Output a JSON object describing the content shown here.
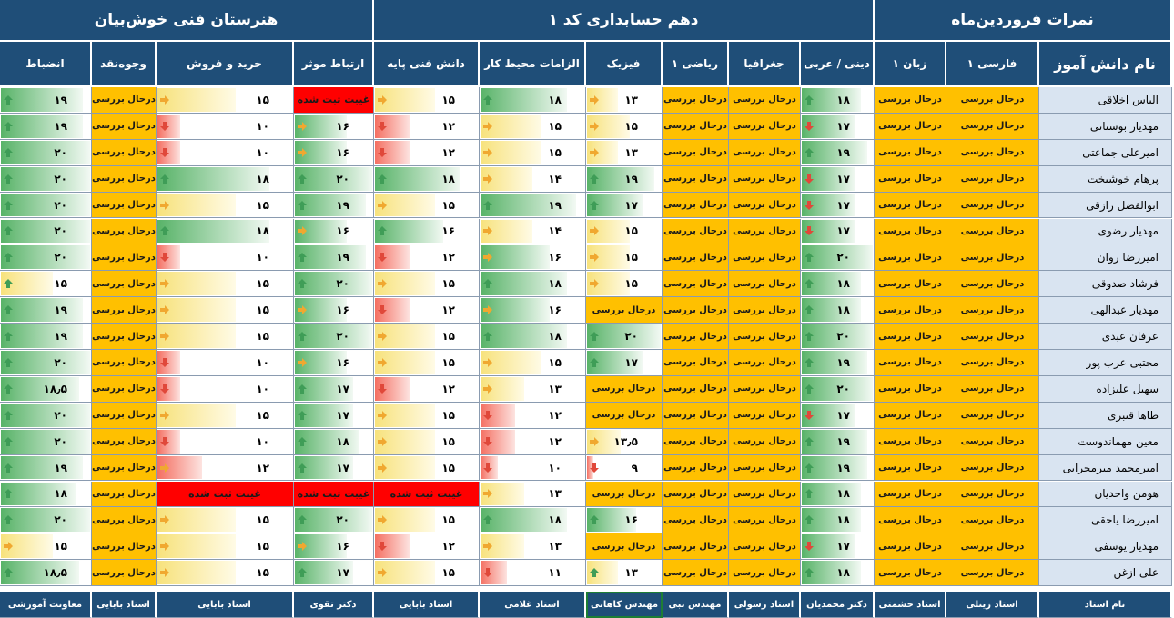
{
  "banners": {
    "school": "هنرستان فنی خوش‌بیان",
    "grade": "دهم حسابداری کد ۱",
    "title": "نمرات فروردین‌ماه"
  },
  "legend": {
    "status_text": "درحال بررسی",
    "absent_text": "غیبت ثبت شده",
    "icons": {
      "up": "arrow-up-icon",
      "right": "arrow-right-icon",
      "down": "arrow-down-icon"
    },
    "colors": {
      "header": "#1f4e78",
      "pending": "#ffc000",
      "absent": "#ff0000",
      "good": "#58b368",
      "medium": "#f7e27c",
      "poor": "#f46f61",
      "name_bg": "#d9e4f1"
    }
  },
  "columns": [
    {
      "key": "name",
      "label": "نام دانش آموز"
    },
    {
      "key": "farsi",
      "label": "فارسی ۱"
    },
    {
      "key": "zaban",
      "label": "زبان ۱"
    },
    {
      "key": "dini",
      "label": "دینی / عربی"
    },
    {
      "key": "joghrafia",
      "label": "جغرافیا"
    },
    {
      "key": "riazi",
      "label": "ریاضی ۱"
    },
    {
      "key": "fizik",
      "label": "فیزیک"
    },
    {
      "key": "elzamat",
      "label": "الزامات محیط کار"
    },
    {
      "key": "danesh",
      "label": "دانش فنی پایه"
    },
    {
      "key": "ertebat",
      "label": "ارتباط موثر"
    },
    {
      "key": "kharid",
      "label": "خرید  و فروش"
    },
    {
      "key": "vojooh",
      "label": "وجوه‌نقد"
    },
    {
      "key": "enzebat",
      "label": "انضباط"
    }
  ],
  "teachers": {
    "header": "نام استاد",
    "list": [
      "استاد زینلی",
      "استاد حشمتی",
      "دکتر محمدیان",
      "استاد رسولی",
      "مهندس نبی",
      "مهندس کاهانی",
      "استاد غلامی",
      "استاد بابایی",
      "دکتر تقوی",
      "استاد بابایی",
      "استاد بابایی",
      "معاونت آموزشی"
    ]
  },
  "students": [
    {
      "name": "الیاس اخلاقی",
      "scores": [
        "P",
        "P",
        {
          "v": "۱۸",
          "n": 18,
          "i": "up"
        },
        "P",
        "P",
        {
          "v": "۱۳",
          "n": 13,
          "i": "right"
        },
        {
          "v": "۱۸",
          "n": 18,
          "i": "up"
        },
        {
          "v": "۱۵",
          "n": 15,
          "i": "right"
        },
        "A",
        {
          "v": "۱۵",
          "n": 15,
          "i": "right"
        },
        "P",
        {
          "v": "۱۹",
          "n": 19,
          "i": "up"
        }
      ]
    },
    {
      "name": "مهدیار بوستانی",
      "scores": [
        "P",
        "P",
        {
          "v": "۱۷",
          "n": 17,
          "i": "down"
        },
        "P",
        "P",
        {
          "v": "۱۵",
          "n": 15,
          "i": "right"
        },
        {
          "v": "۱۵",
          "n": 15,
          "i": "right"
        },
        {
          "v": "۱۲",
          "n": 12,
          "i": "down"
        },
        {
          "v": "۱۶",
          "n": 16,
          "i": "right"
        },
        {
          "v": "۱۰",
          "n": 10,
          "i": "down"
        },
        "P",
        {
          "v": "۱۹",
          "n": 19,
          "i": "up"
        }
      ]
    },
    {
      "name": "امیرعلی جماعتی",
      "scores": [
        "P",
        "P",
        {
          "v": "۱۹",
          "n": 19,
          "i": "up"
        },
        "P",
        "P",
        {
          "v": "۱۳",
          "n": 13,
          "i": "right"
        },
        {
          "v": "۱۵",
          "n": 15,
          "i": "right"
        },
        {
          "v": "۱۲",
          "n": 12,
          "i": "down"
        },
        {
          "v": "۱۶",
          "n": 16,
          "i": "right"
        },
        {
          "v": "۱۰",
          "n": 10,
          "i": "down"
        },
        "P",
        {
          "v": "۲۰",
          "n": 20,
          "i": "up"
        }
      ]
    },
    {
      "name": "پرهام خوشبخت",
      "scores": [
        "P",
        "P",
        {
          "v": "۱۷",
          "n": 17,
          "i": "down"
        },
        "P",
        "P",
        {
          "v": "۱۹",
          "n": 19,
          "i": "up"
        },
        {
          "v": "۱۴",
          "n": 14,
          "i": "right"
        },
        {
          "v": "۱۸",
          "n": 18,
          "i": "up"
        },
        {
          "v": "۲۰",
          "n": 20,
          "i": "up"
        },
        {
          "v": "۱۸",
          "n": 18,
          "i": "up"
        },
        "P",
        {
          "v": "۲۰",
          "n": 20,
          "i": "up"
        }
      ]
    },
    {
      "name": "ابوالفضل رازقی",
      "scores": [
        "P",
        "P",
        {
          "v": "۱۷",
          "n": 17,
          "i": "down"
        },
        "P",
        "P",
        {
          "v": "۱۷",
          "n": 17,
          "i": "up"
        },
        {
          "v": "۱۹",
          "n": 19,
          "i": "up"
        },
        {
          "v": "۱۵",
          "n": 15,
          "i": "right"
        },
        {
          "v": "۱۹",
          "n": 19,
          "i": "up"
        },
        {
          "v": "۱۵",
          "n": 15,
          "i": "right"
        },
        "P",
        {
          "v": "۲۰",
          "n": 20,
          "i": "up"
        }
      ]
    },
    {
      "name": "مهدیار رضوی",
      "scores": [
        "P",
        "P",
        {
          "v": "۱۷",
          "n": 17,
          "i": "down"
        },
        "P",
        "P",
        {
          "v": "۱۵",
          "n": 15,
          "i": "right"
        },
        {
          "v": "۱۴",
          "n": 14,
          "i": "right"
        },
        {
          "v": "۱۶",
          "n": 16,
          "i": "up"
        },
        {
          "v": "۱۶",
          "n": 16,
          "i": "right"
        },
        {
          "v": "۱۸",
          "n": 18,
          "i": "up"
        },
        "P",
        {
          "v": "۲۰",
          "n": 20,
          "i": "up"
        }
      ]
    },
    {
      "name": "امیررضا روان",
      "scores": [
        "P",
        "P",
        {
          "v": "۲۰",
          "n": 20,
          "i": "up"
        },
        "P",
        "P",
        {
          "v": "۱۵",
          "n": 15,
          "i": "right"
        },
        {
          "v": "۱۶",
          "n": 16,
          "i": "right"
        },
        {
          "v": "۱۲",
          "n": 12,
          "i": "down"
        },
        {
          "v": "۱۹",
          "n": 19,
          "i": "up"
        },
        {
          "v": "۱۰",
          "n": 10,
          "i": "down"
        },
        "P",
        {
          "v": "۲۰",
          "n": 20,
          "i": "up"
        }
      ]
    },
    {
      "name": "فرشاد صدوقی",
      "scores": [
        "P",
        "P",
        {
          "v": "۱۸",
          "n": 18,
          "i": "up"
        },
        "P",
        "P",
        {
          "v": "۱۵",
          "n": 15,
          "i": "right"
        },
        {
          "v": "۱۸",
          "n": 18,
          "i": "up"
        },
        {
          "v": "۱۵",
          "n": 15,
          "i": "right"
        },
        {
          "v": "۲۰",
          "n": 20,
          "i": "up"
        },
        {
          "v": "۱۵",
          "n": 15,
          "i": "right"
        },
        "P",
        {
          "v": "۱۵",
          "n": 15,
          "i": "up"
        }
      ]
    },
    {
      "name": "مهدیار عبدالهی",
      "scores": [
        "P",
        "P",
        {
          "v": "۱۸",
          "n": 18,
          "i": "up"
        },
        "P",
        "P",
        "P",
        {
          "v": "۱۶",
          "n": 16,
          "i": "right"
        },
        {
          "v": "۱۲",
          "n": 12,
          "i": "down"
        },
        {
          "v": "۱۶",
          "n": 16,
          "i": "right"
        },
        {
          "v": "۱۵",
          "n": 15,
          "i": "right"
        },
        "P",
        {
          "v": "۱۹",
          "n": 19,
          "i": "up"
        }
      ]
    },
    {
      "name": "عرفان عبدی",
      "scores": [
        "P",
        "P",
        {
          "v": "۲۰",
          "n": 20,
          "i": "up"
        },
        "P",
        "P",
        {
          "v": "۲۰",
          "n": 20,
          "i": "up"
        },
        {
          "v": "۱۸",
          "n": 18,
          "i": "up"
        },
        {
          "v": "۱۵",
          "n": 15,
          "i": "right"
        },
        {
          "v": "۲۰",
          "n": 20,
          "i": "up"
        },
        {
          "v": "۱۵",
          "n": 15,
          "i": "right"
        },
        "P",
        {
          "v": "۱۹",
          "n": 19,
          "i": "up"
        }
      ]
    },
    {
      "name": "مجتبی عرب پور",
      "scores": [
        "P",
        "P",
        {
          "v": "۱۹",
          "n": 19,
          "i": "up"
        },
        "P",
        "P",
        {
          "v": "۱۷",
          "n": 17,
          "i": "up"
        },
        {
          "v": "۱۵",
          "n": 15,
          "i": "right"
        },
        {
          "v": "۱۵",
          "n": 15,
          "i": "right"
        },
        {
          "v": "۱۶",
          "n": 16,
          "i": "right"
        },
        {
          "v": "۱۰",
          "n": 10,
          "i": "down"
        },
        "P",
        {
          "v": "۲۰",
          "n": 20,
          "i": "up"
        }
      ]
    },
    {
      "name": "سهیل علیزاده",
      "scores": [
        "P",
        "P",
        {
          "v": "۲۰",
          "n": 20,
          "i": "up"
        },
        "P",
        "P",
        "P",
        {
          "v": "۱۳",
          "n": 13,
          "i": "right"
        },
        {
          "v": "۱۲",
          "n": 12,
          "i": "down"
        },
        {
          "v": "۱۷",
          "n": 17,
          "i": "up"
        },
        {
          "v": "۱۰",
          "n": 10,
          "i": "down"
        },
        "P",
        {
          "v": "۱۸٫۵",
          "n": 18.5,
          "i": "up"
        }
      ]
    },
    {
      "name": "طاها قنبری",
      "scores": [
        "P",
        "P",
        {
          "v": "۱۷",
          "n": 17,
          "i": "down"
        },
        "P",
        "P",
        "P",
        {
          "v": "۱۲",
          "n": 12,
          "i": "down"
        },
        {
          "v": "۱۵",
          "n": 15,
          "i": "right"
        },
        {
          "v": "۱۷",
          "n": 17,
          "i": "up"
        },
        {
          "v": "۱۵",
          "n": 15,
          "i": "right"
        },
        "P",
        {
          "v": "۲۰",
          "n": 20,
          "i": "up"
        }
      ]
    },
    {
      "name": "معین مهماندوست",
      "scores": [
        "P",
        "P",
        {
          "v": "۱۹",
          "n": 19,
          "i": "up"
        },
        "P",
        "P",
        {
          "v": "۱۳٫۵",
          "n": 13.5,
          "i": "right"
        },
        {
          "v": "۱۲",
          "n": 12,
          "i": "down"
        },
        {
          "v": "۱۵",
          "n": 15,
          "i": "right"
        },
        {
          "v": "۱۸",
          "n": 18,
          "i": "up"
        },
        {
          "v": "۱۰",
          "n": 10,
          "i": "down"
        },
        "P",
        {
          "v": "۲۰",
          "n": 20,
          "i": "up"
        }
      ]
    },
    {
      "name": "امیرمحمد میرمحرابی",
      "scores": [
        "P",
        "P",
        {
          "v": "۱۹",
          "n": 19,
          "i": "up"
        },
        "P",
        "P",
        {
          "v": "۹",
          "n": 9,
          "i": "down"
        },
        {
          "v": "۱۰",
          "n": 10,
          "i": "down"
        },
        {
          "v": "۱۵",
          "n": 15,
          "i": "right"
        },
        {
          "v": "۱۷",
          "n": 17,
          "i": "up"
        },
        {
          "v": "۱۲",
          "n": 12,
          "i": "right"
        },
        "P",
        {
          "v": "۱۹",
          "n": 19,
          "i": "up"
        }
      ]
    },
    {
      "name": "هومن واحدیان",
      "scores": [
        "P",
        "P",
        {
          "v": "۱۸",
          "n": 18,
          "i": "up"
        },
        "P",
        "P",
        "P",
        {
          "v": "۱۳",
          "n": 13,
          "i": "right"
        },
        "A",
        "A",
        "A",
        "P",
        {
          "v": "۱۸",
          "n": 18,
          "i": "up"
        }
      ]
    },
    {
      "name": "امیررضا یاحقی",
      "scores": [
        "P",
        "P",
        {
          "v": "۱۸",
          "n": 18,
          "i": "up"
        },
        "P",
        "P",
        {
          "v": "۱۶",
          "n": 16,
          "i": "up"
        },
        {
          "v": "۱۸",
          "n": 18,
          "i": "up"
        },
        {
          "v": "۱۵",
          "n": 15,
          "i": "right"
        },
        {
          "v": "۲۰",
          "n": 20,
          "i": "up"
        },
        {
          "v": "۱۵",
          "n": 15,
          "i": "right"
        },
        "P",
        {
          "v": "۲۰",
          "n": 20,
          "i": "up"
        }
      ]
    },
    {
      "name": "مهدیار یوسفی",
      "scores": [
        "P",
        "P",
        {
          "v": "۱۷",
          "n": 17,
          "i": "down"
        },
        "P",
        "P",
        "P",
        {
          "v": "۱۳",
          "n": 13,
          "i": "right"
        },
        {
          "v": "۱۲",
          "n": 12,
          "i": "down"
        },
        {
          "v": "۱۶",
          "n": 16,
          "i": "right"
        },
        {
          "v": "۱۵",
          "n": 15,
          "i": "right"
        },
        "P",
        {
          "v": "۱۵",
          "n": 15,
          "i": "right"
        }
      ]
    },
    {
      "name": "علی ازغن",
      "scores": [
        "P",
        "P",
        {
          "v": "۱۸",
          "n": 18,
          "i": "up"
        },
        "P",
        "P",
        {
          "v": "۱۳",
          "n": 13,
          "i": "up"
        },
        {
          "v": "۱۱",
          "n": 11,
          "i": "down"
        },
        {
          "v": "۱۵",
          "n": 15,
          "i": "right"
        },
        {
          "v": "۱۷",
          "n": 17,
          "i": "up"
        },
        {
          "v": "۱۵",
          "n": 15,
          "i": "right"
        },
        "P",
        {
          "v": "۱۸٫۵",
          "n": 18.5,
          "i": "up"
        }
      ]
    }
  ]
}
